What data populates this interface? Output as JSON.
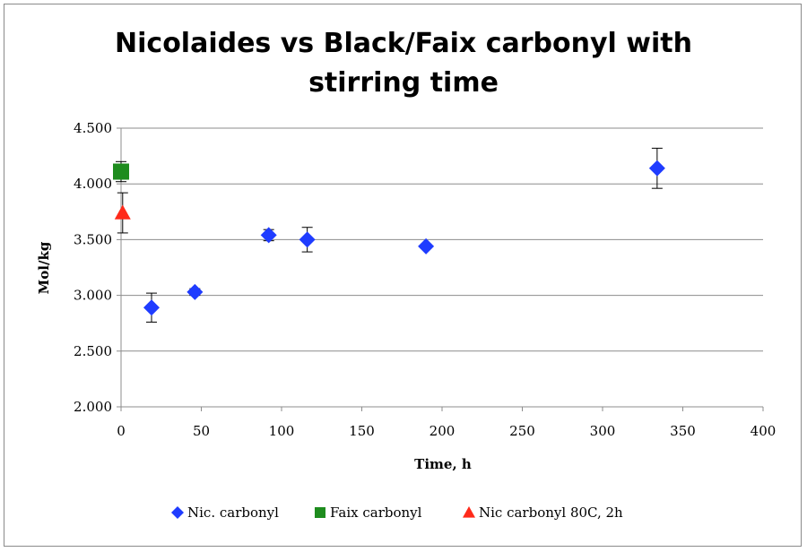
{
  "chart_data": {
    "type": "scatter",
    "title_lines": [
      "Nicolaides vs Black/Faix carbonyl with",
      "stirring time"
    ],
    "xlabel": "Time, h",
    "ylabel": "Mol/kg",
    "xlim": [
      0,
      400
    ],
    "ylim": [
      2.0,
      4.5
    ],
    "x_ticks": [
      0,
      50,
      100,
      150,
      200,
      250,
      300,
      350,
      400
    ],
    "x_tick_labels": [
      "0",
      "50",
      "100",
      "150",
      "200",
      "250",
      "300",
      "350",
      "400"
    ],
    "y_ticks": [
      2.0,
      2.5,
      3.0,
      3.5,
      4.0,
      4.5
    ],
    "y_tick_labels": [
      "2.000",
      "2.500",
      "3.000",
      "3.500",
      "4.000",
      "4.500"
    ],
    "grid": "horizontal",
    "legend_position": "bottom",
    "series": [
      {
        "name": "Nic. carbonyl",
        "marker": "diamond",
        "color": "#1f3cff",
        "points": [
          {
            "x": 19,
            "y": 2.89,
            "err": 0.13
          },
          {
            "x": 46,
            "y": 3.03,
            "err": 0.03
          },
          {
            "x": 92,
            "y": 3.54,
            "err": 0.05
          },
          {
            "x": 116,
            "y": 3.5,
            "err": 0.11
          },
          {
            "x": 190,
            "y": 3.44,
            "err": 0.02
          },
          {
            "x": 334,
            "y": 4.14,
            "err": 0.18
          }
        ]
      },
      {
        "name": "Faix carbonyl",
        "marker": "square",
        "color": "#1e8c1e",
        "points": [
          {
            "x": 0,
            "y": 4.11,
            "err": 0.09
          }
        ]
      },
      {
        "name": "Nic carbonyl 80C, 2h",
        "marker": "triangle",
        "color": "#ff2a1a",
        "points": [
          {
            "x": 1,
            "y": 3.74,
            "err": 0.18
          }
        ]
      }
    ]
  }
}
